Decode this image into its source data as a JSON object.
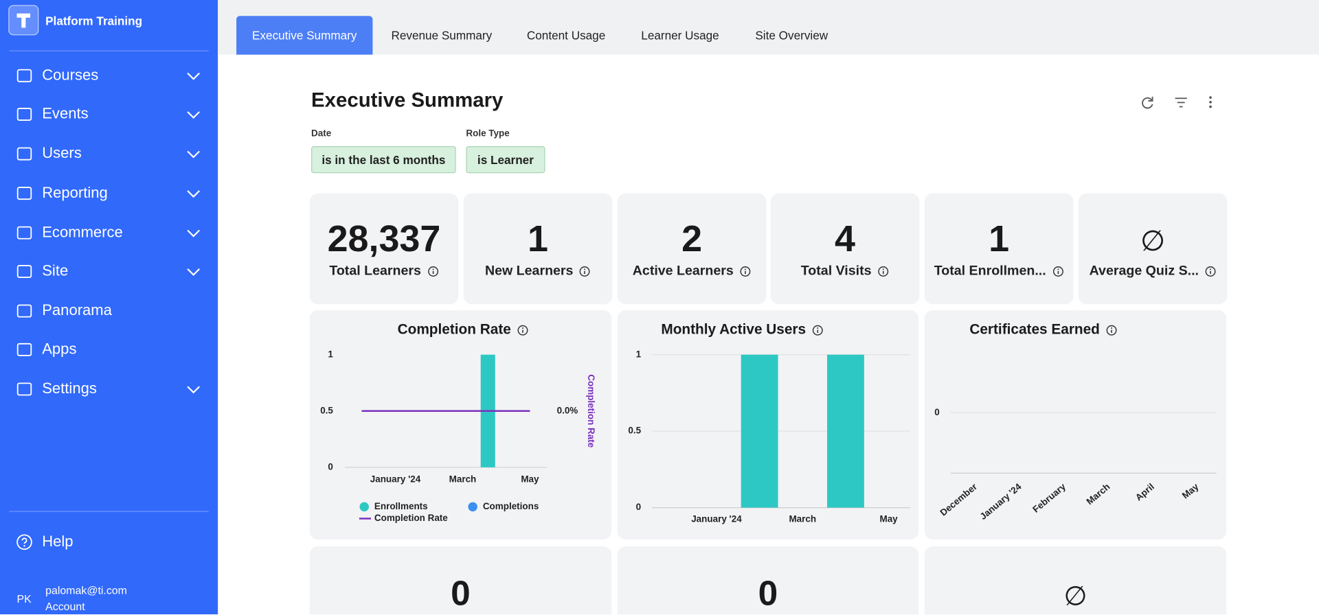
{
  "sidebar": {
    "brand": "Platform Training",
    "nav": [
      "Courses",
      "Events",
      "Users",
      "Reporting",
      "Ecommerce",
      "Site",
      "Panorama",
      "Apps",
      "Settings"
    ],
    "help": "Help",
    "user": {
      "initials": "PK",
      "email": "palomak@ti.com",
      "account": "Account"
    }
  },
  "tabs": [
    "Executive Summary",
    "Revenue Summary",
    "Content Usage",
    "Learner Usage",
    "Site Overview"
  ],
  "header": {
    "title": "Executive Summary",
    "filters": [
      {
        "label": "Date",
        "value": "is in the last 6 months"
      },
      {
        "label": "Role Type",
        "value": "is Learner"
      }
    ]
  },
  "kpis": [
    {
      "value": "28,337",
      "label": "Total Learners"
    },
    {
      "value": "1",
      "label": "New Learners"
    },
    {
      "value": "2",
      "label": "Active Learners"
    },
    {
      "value": "4",
      "label": "Total Visits"
    },
    {
      "value": "1",
      "label": "Total Enrollmen..."
    },
    {
      "value": "∅",
      "label": "Average Quiz S..."
    }
  ],
  "kpis_bottom": [
    "0",
    "0",
    "∅"
  ],
  "chart_data": [
    {
      "type": "bar",
      "title": "Completion Rate",
      "categories": [
        null,
        "January '24",
        null,
        "March",
        null,
        "May"
      ],
      "series": [
        {
          "name": "Enrollments",
          "color": "#2ec8c4",
          "values": [
            0,
            0,
            0,
            0,
            1,
            0
          ]
        },
        {
          "name": "Completions",
          "color": "#3b8ff0",
          "values": [
            0,
            0,
            0,
            0,
            0,
            0
          ]
        },
        {
          "name": "Completion Rate",
          "color": "#7b2fbe",
          "type": "line",
          "axis": "y2",
          "values": [
            0,
            0,
            0,
            0,
            0,
            0
          ]
        }
      ],
      "ylim": [
        0,
        1
      ],
      "yticks": [
        0,
        0.5,
        1
      ],
      "y2label": "Completion Rate",
      "y2lim": [
        -1,
        1
      ],
      "y2ticks": [
        {
          "value": 0,
          "label": "0.0%"
        }
      ],
      "grid": false,
      "legend": "bottom"
    },
    {
      "type": "bar",
      "title": "Monthly Active Users",
      "categories": [
        null,
        "January '24",
        null,
        "March",
        null,
        "May"
      ],
      "values": [
        0,
        0,
        1,
        0,
        1,
        0
      ],
      "color": "#2ec8c4",
      "ylim": [
        0,
        1
      ],
      "yticks": [
        0,
        0.5,
        1
      ],
      "grid": true
    },
    {
      "type": "bar",
      "title": "Certificates Earned",
      "categories": [
        "December",
        "January '24",
        "February",
        "March",
        "April",
        "May"
      ],
      "values": [
        0,
        0,
        0,
        0,
        0,
        0
      ],
      "color": "#2ec8c4",
      "ylim": [
        -1,
        1
      ],
      "yticks": [
        0
      ],
      "grid": true
    }
  ]
}
